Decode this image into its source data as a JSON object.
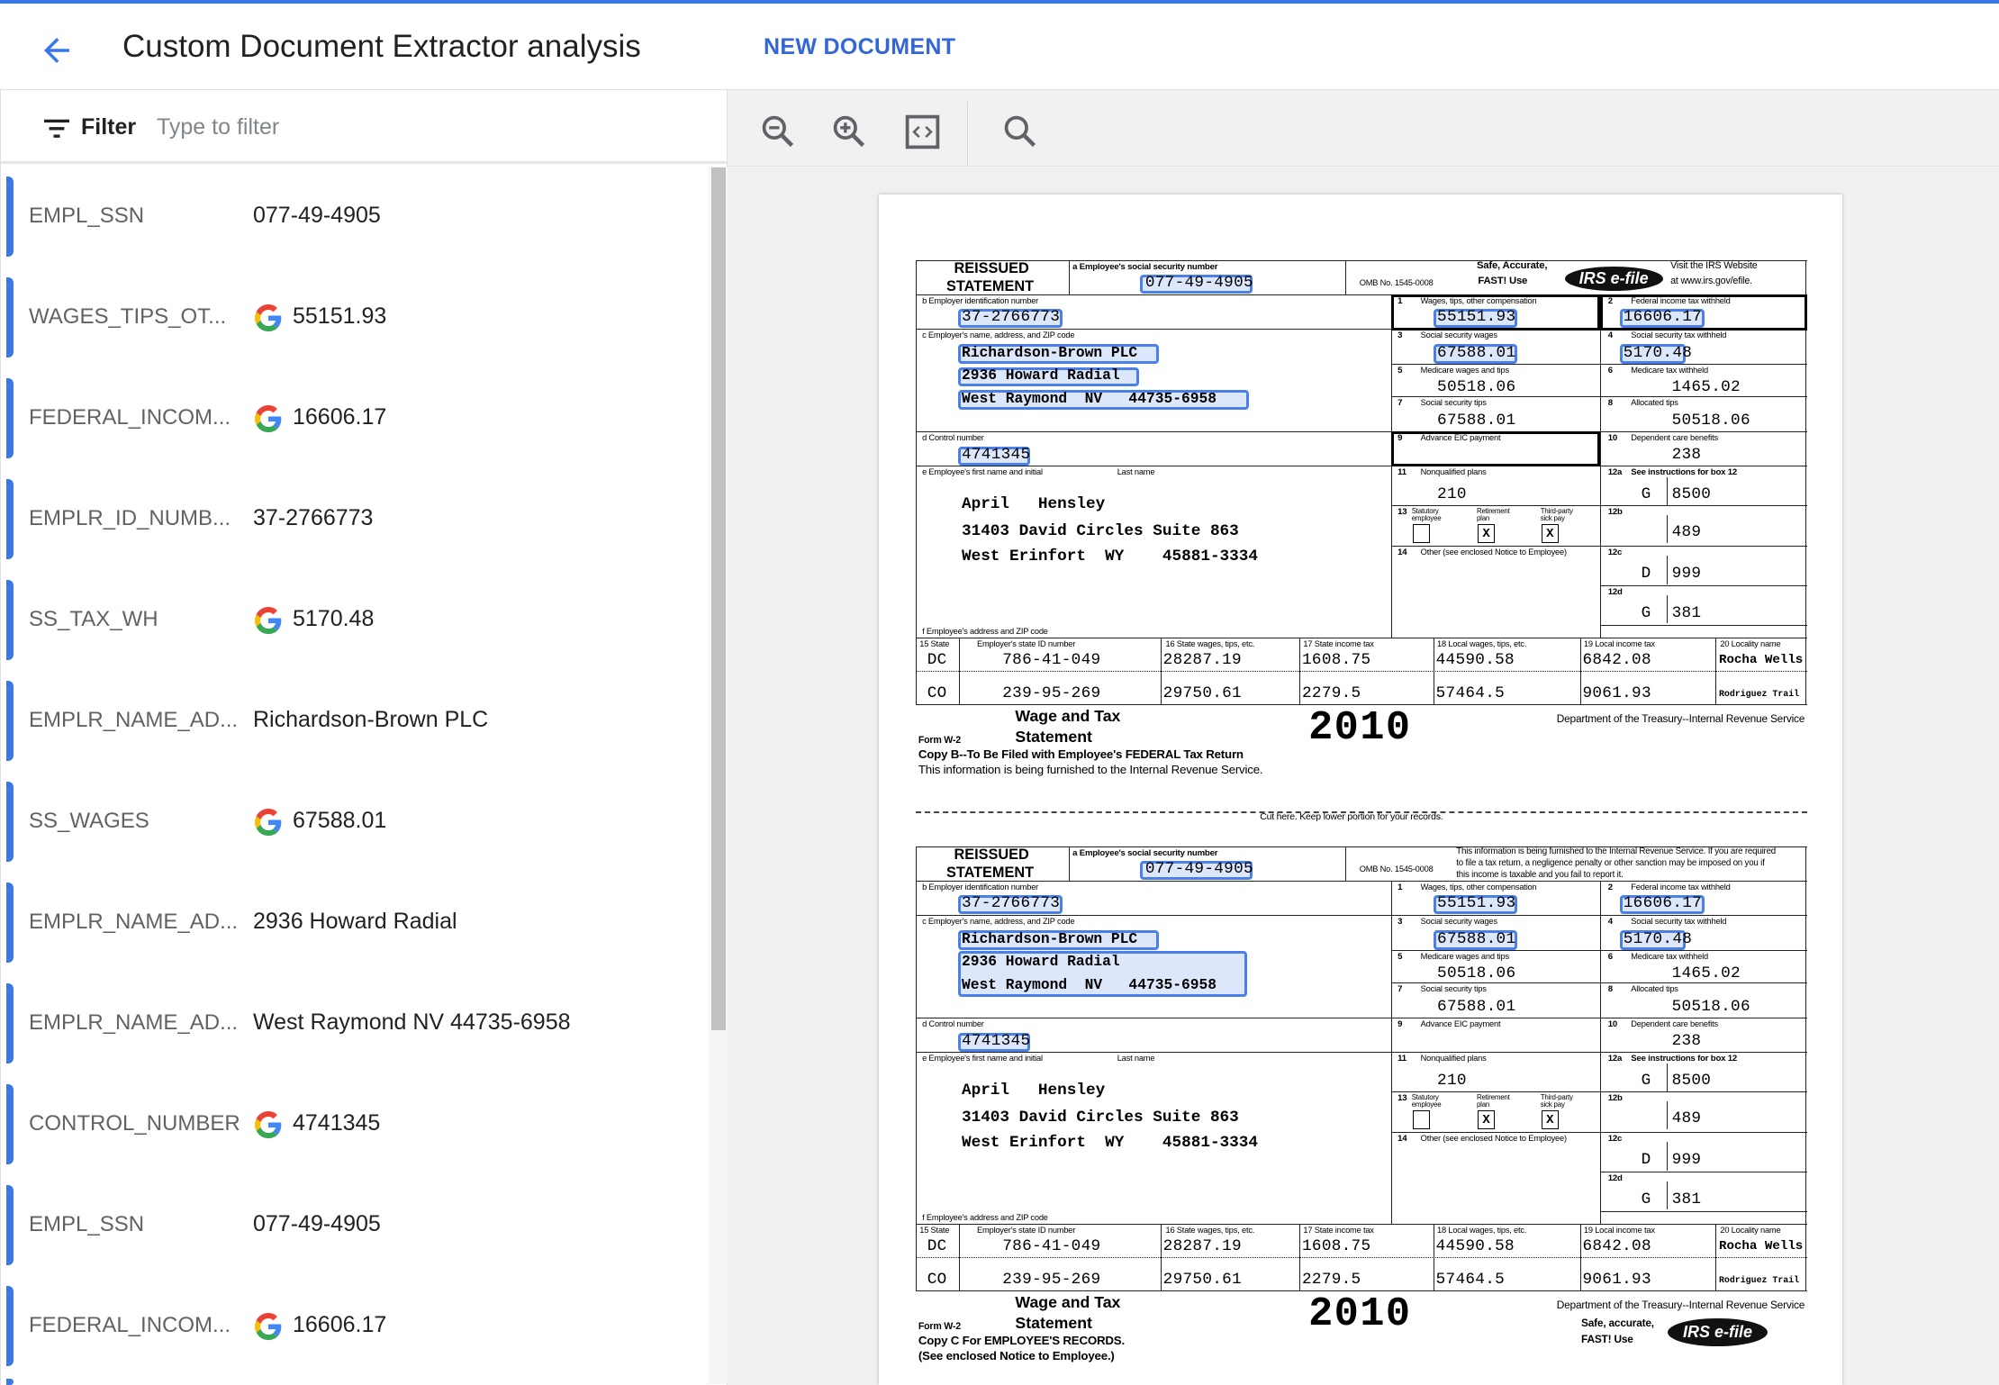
{
  "app": {
    "title": "Custom Document Extractor analysis",
    "new_document": "NEW DOCUMENT",
    "accent": "#3b78e7"
  },
  "filter": {
    "label": "Filter",
    "placeholder": "Type to filter",
    "value": ""
  },
  "toolbar": {
    "icons": [
      "zoom-out-icon",
      "zoom-in-icon",
      "fit-code-icon",
      "search-icon"
    ]
  },
  "entities": [
    {
      "label": "EMPL_SSN",
      "value": "077-49-4905",
      "google": false
    },
    {
      "label": "WAGES_TIPS_OT...",
      "value": "55151.93",
      "google": true
    },
    {
      "label": "FEDERAL_INCOM...",
      "value": "16606.17",
      "google": true
    },
    {
      "label": "EMPLR_ID_NUMB...",
      "value": "37-2766773",
      "google": false
    },
    {
      "label": "SS_TAX_WH",
      "value": "5170.48",
      "google": true
    },
    {
      "label": "EMPLR_NAME_AD...",
      "value": "Richardson-Brown PLC",
      "google": false
    },
    {
      "label": "SS_WAGES",
      "value": "67588.01",
      "google": true
    },
    {
      "label": "EMPLR_NAME_AD...",
      "value": "2936 Howard Radial",
      "google": false
    },
    {
      "label": "EMPLR_NAME_AD...",
      "value": "West Raymond NV 44735-6958",
      "google": false
    },
    {
      "label": "CONTROL_NUMBER",
      "value": "4741345",
      "google": true
    },
    {
      "label": "EMPL_SSN",
      "value": "077-49-4905",
      "google": false
    },
    {
      "label": "FEDERAL_INCOM...",
      "value": "16606.17",
      "google": true
    },
    {
      "label": "",
      "value": "",
      "google": false
    }
  ],
  "doc": {
    "labels": {
      "reissued": "REISSUED",
      "statement": "STATEMENT",
      "a": "a   Employee's social security number",
      "omb": "OMB No. 1545-0008",
      "b": "b   Employer identification number",
      "c": "c   Employer's name, address, and ZIP code",
      "d": "d   Control number",
      "e": "e   Employee's first name and initial",
      "last": "Last name",
      "f": "f   Employee's address and ZIP code",
      "b1": "1",
      "b1t": "Wages, tips, other compensation",
      "b2": "2",
      "b2t": "Federal income tax withheld",
      "b3": "3",
      "b3t": "Social security wages",
      "b4": "4",
      "b4t": "Social security tax withheld",
      "b5": "5",
      "b5t": "Medicare wages and tips",
      "b6": "6",
      "b6t": "Medicare tax withheld",
      "b7": "7",
      "b7t": "Social security tips",
      "b8": "8",
      "b8t": "Allocated tips",
      "b9": "9",
      "b9t": "Advance EIC payment",
      "b10": "10",
      "b10t": "Dependent care benefits",
      "b11": "11",
      "b11t": "Nonqualified plans",
      "b12a": "12a",
      "b12at": "See instructions for box 12",
      "b12b": "12b",
      "b12c": "12c",
      "b12d": "12d",
      "b13": "13",
      "stat1": "Statutory",
      "stat2": "employee",
      "ret1": "Retirement",
      "ret2": "plan",
      "tp1": "Third-party",
      "tp2": "sick pay",
      "b14": "14",
      "b14t": "Other (see enclosed Notice to Employee)",
      "s15": "15  State",
      "sid": "Employer's state ID number",
      "s16": "16  State wages, tips, etc.",
      "s17": "17  State income tax",
      "s18": "18  Local wages, tips, etc.",
      "s19": "19  Local income tax",
      "s20": "20  Locality name",
      "wage": "Wage and Tax",
      "stmt": "Statement",
      "formw2": "Form  W-2",
      "year": "2010",
      "dept": "Department of the Treasury--Internal Revenue Service",
      "cut": "Cut here.  Keep lower portion for your records.",
      "efile": "e-file",
      "irs": "IRS"
    },
    "values": {
      "ssn": "077-49-4905",
      "ein": "37-2766773",
      "emp_name": "Richardson-Brown PLC",
      "emp_addr": "2936 Howard Radial",
      "emp_city": "West Raymond  NV   44735-6958",
      "control": "4741345",
      "ee_name": "April   Hensley",
      "ee_addr": "31403 David Circles Suite 863",
      "ee_city": "West Erinfort  WY    45881-3334",
      "w1": "55151.93",
      "w2": "16606.17",
      "w3": "67588.01",
      "w4": "5170.48",
      "w5": "50518.06",
      "w6": "1465.02",
      "w7": "67588.01",
      "w8": "50518.06",
      "w10": "238",
      "w11": "210",
      "c12a": "G",
      "v12a": "8500",
      "v12b": "489",
      "c12c": "D",
      "v12c": "999",
      "c12d": "G",
      "v12d": "381",
      "cb_statutory": "",
      "cb_retirement": "X",
      "cb_thirdparty": "X",
      "states": [
        {
          "state": "DC",
          "id": "786-41-049",
          "wages": "28287.19",
          "tax": "1608.75",
          "lwages": "44590.58",
          "ltax": "6842.08",
          "locality": "Rocha Wells"
        },
        {
          "state": "CO",
          "id": "239-95-269",
          "wages": "29750.61",
          "tax": "2279.5",
          "lwages": "57464.5",
          "ltax": "9061.93",
          "locality": "Rodriguez Trail"
        }
      ]
    },
    "copies": [
      {
        "safe": "Safe, Accurate,",
        "fast": "FAST!  Use",
        "visit1": "Visit the IRS Website",
        "visit2": "at www.irs.gov/efile.",
        "copy1": "Copy B--To Be Filed with Employee's FEDERAL Tax Return",
        "copy2": "This information is being furnished to the Internal Revenue Service."
      },
      {
        "notice1": "This information is being furnished to the Internal Revenue Service.  If you are required",
        "notice2": "to file a tax return, a negligence penalty or other sanction may be imposed on you if",
        "notice3": "this income is taxable and you fail to report it.",
        "copy1": "Copy C For EMPLOYEE'S RECORDS.",
        "copy2": "(See enclosed Notice to Employee.)",
        "safe": "Safe, accurate,",
        "fast": "FAST!  Use"
      }
    ]
  }
}
